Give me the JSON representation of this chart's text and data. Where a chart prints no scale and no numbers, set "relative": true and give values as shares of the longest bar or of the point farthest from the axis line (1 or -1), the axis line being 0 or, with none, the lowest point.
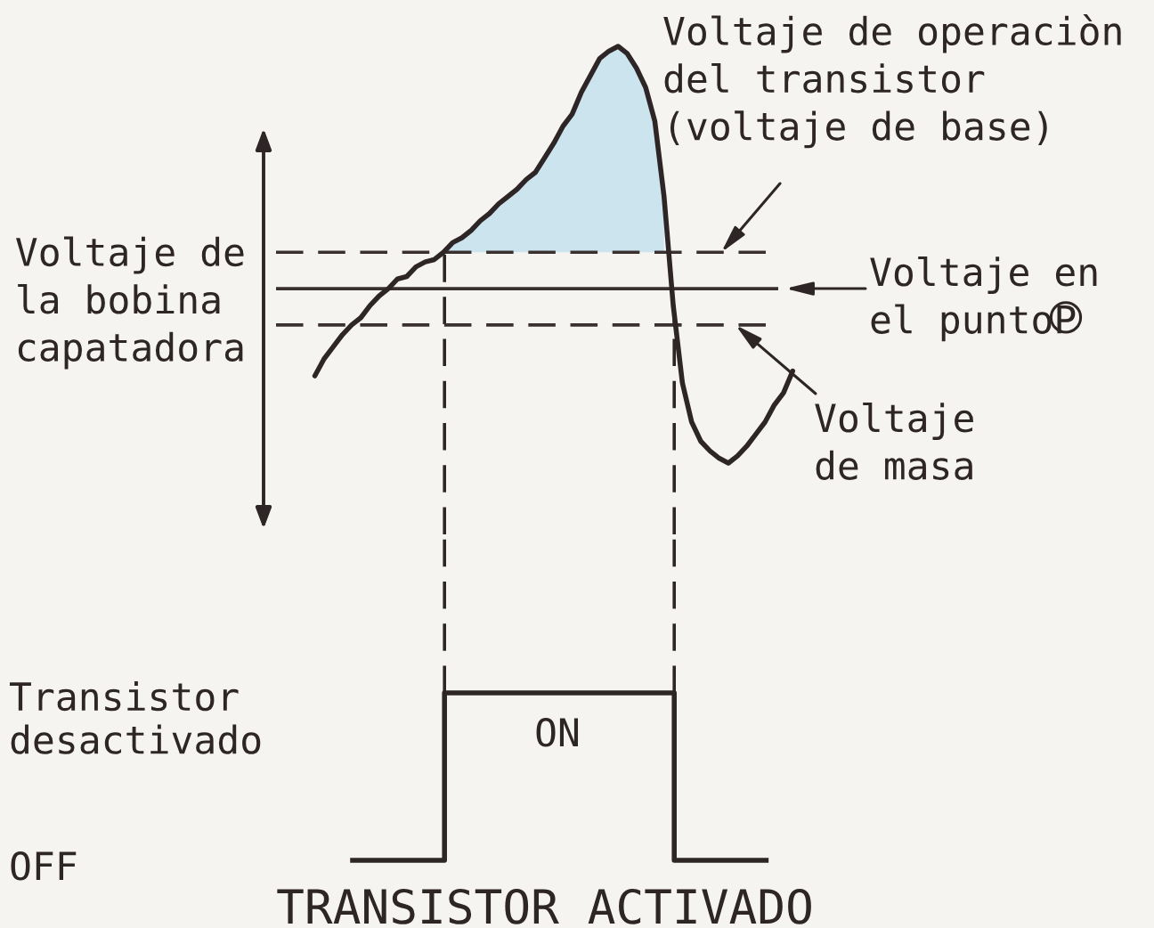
{
  "chart_data": [
    {
      "type": "line",
      "relative": true,
      "ylabel": "Voltaje de\nla bobina\ncapatadora",
      "categories": [
        null,
        null,
        null,
        null,
        null,
        null,
        null,
        null,
        null,
        null,
        null,
        null,
        null,
        null,
        null,
        null,
        null,
        null,
        null,
        null,
        null,
        null,
        null,
        null,
        null,
        null,
        null,
        null,
        null,
        null,
        null,
        null,
        null,
        null,
        null,
        null,
        null,
        null,
        null,
        null,
        null,
        null,
        null,
        null,
        null,
        null,
        null,
        null,
        null,
        null,
        null,
        null,
        null
      ],
      "color": "#2e2626",
      "values": [
        -0.36,
        -0.29,
        -0.24,
        -0.19,
        -0.15,
        -0.12,
        -0.07,
        -0.03,
        0.0,
        0.04,
        0.05,
        0.09,
        0.11,
        0.12,
        0.15,
        0.19,
        0.21,
        0.24,
        0.28,
        0.31,
        0.35,
        0.38,
        0.41,
        0.45,
        0.48,
        0.54,
        0.6,
        0.67,
        0.72,
        0.81,
        0.88,
        0.95,
        0.98,
        1.0,
        0.97,
        0.91,
        0.83,
        0.69,
        0.38,
        -0.07,
        -0.39,
        -0.55,
        -0.63,
        -0.67,
        -0.7,
        -0.72,
        -0.69,
        -0.65,
        -0.6,
        -0.55,
        -0.48,
        -0.43,
        -0.34
      ],
      "lower": [
        null,
        null,
        null,
        null,
        null,
        null,
        null,
        null,
        null,
        null,
        null,
        null,
        null,
        null,
        0.15,
        0.15,
        0.15,
        0.15,
        0.15,
        0.15,
        0.15,
        0.15,
        0.15,
        0.15,
        0.15,
        0.15,
        0.15,
        0.15,
        0.15,
        0.15,
        0.15,
        0.15,
        0.15,
        0.15,
        0.15,
        0.15,
        0.15,
        0.15,
        0.15,
        null,
        null,
        null,
        null,
        null,
        null,
        null,
        null,
        null,
        null,
        null,
        null,
        null,
        null
      ],
      "upper": [
        null,
        null,
        null,
        null,
        null,
        null,
        null,
        null,
        null,
        null,
        null,
        null,
        null,
        null,
        0.15,
        0.19,
        0.21,
        0.24,
        0.28,
        0.31,
        0.35,
        0.38,
        0.41,
        0.45,
        0.48,
        0.54,
        0.6,
        0.67,
        0.72,
        0.81,
        0.88,
        0.95,
        0.98,
        1.0,
        0.97,
        0.91,
        0.83,
        0.69,
        0.38,
        null,
        null,
        null,
        null,
        null,
        null,
        null,
        null,
        null,
        null,
        null,
        null,
        null,
        null
      ],
      "ref_lines": [
        {
          "axis": "y",
          "value": 0.15,
          "label": "Voltaje de operaciòn\ndel transistor\n(voltaje de base)",
          "line_style": "dashed",
          "color": "#3a3030"
        },
        {
          "axis": "y",
          "value": 0,
          "label": "Voltaje en\nel puntoP",
          "line_style": "solid",
          "color": "#3a3030"
        },
        {
          "axis": "y",
          "value": -0.15,
          "label": "Voltaje\nde masa",
          "line_style": "dashed",
          "color": "#3a3030"
        }
      ]
    },
    {
      "type": "step",
      "relative": true,
      "xlabel": "TRANSISTOR ACTIVADO",
      "categories": [
        null,
        null,
        null,
        null,
        null,
        null,
        null,
        null,
        null,
        null
      ],
      "values": [
        0,
        0,
        1,
        1,
        1,
        1,
        1,
        0,
        0,
        0
      ],
      "color": "#2e2626",
      "annotations": [
        "Transistor\ndesactivado",
        "ON",
        "OFF"
      ]
    }
  ]
}
